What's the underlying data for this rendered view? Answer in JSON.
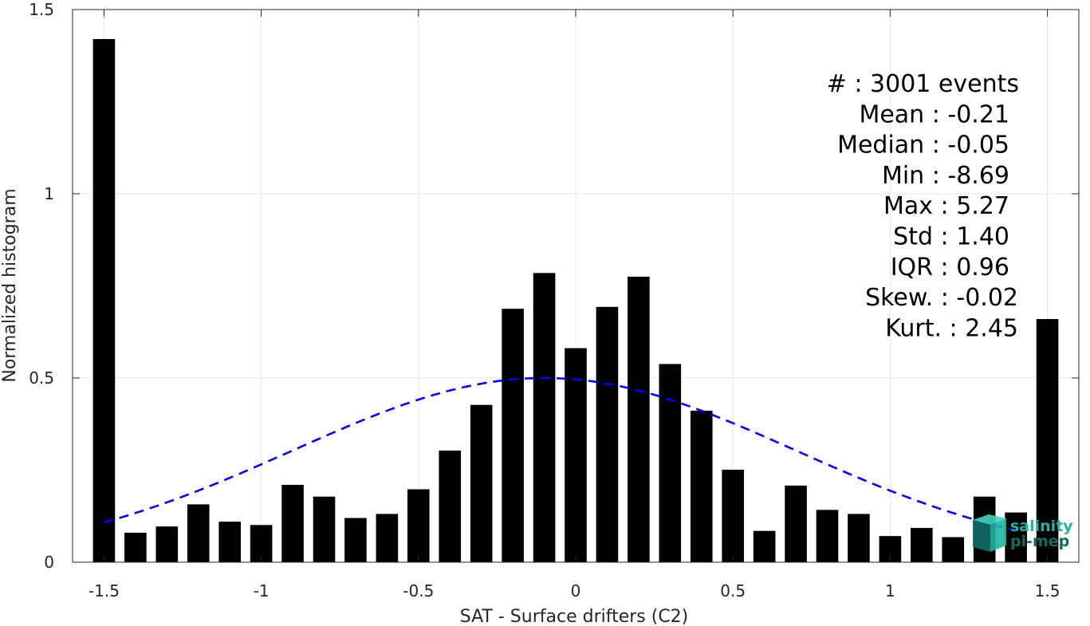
{
  "chart_data": {
    "type": "bar",
    "xlabel": "SAT - Surface drifters (C2)",
    "ylabel": "Normalized histogram",
    "xlim": [
      -1.6,
      1.6
    ],
    "ylim": [
      0,
      1.5
    ],
    "xticks": [
      -1.5,
      -1,
      -0.5,
      0,
      0.5,
      1,
      1.5
    ],
    "xtick_labels": [
      "-1.5",
      "-1",
      "-0.5",
      "0",
      "0.5",
      "1",
      "1.5"
    ],
    "yticks": [
      0,
      0.5,
      1,
      1.5
    ],
    "ytick_labels": [
      "0",
      "0.5",
      "1",
      "1.5"
    ],
    "grid": true,
    "bar_color": "#000000",
    "bar_width": 0.07,
    "x": [
      -1.5,
      -1.4,
      -1.3,
      -1.2,
      -1.1,
      -1.0,
      -0.9,
      -0.8,
      -0.7,
      -0.6,
      -0.5,
      -0.4,
      -0.3,
      -0.2,
      -0.1,
      0.0,
      0.1,
      0.2,
      0.3,
      0.4,
      0.5,
      0.6,
      0.7,
      0.8,
      0.9,
      1.0,
      1.1,
      1.2,
      1.3,
      1.4,
      1.5
    ],
    "values": [
      1.42,
      0.08,
      0.097,
      0.157,
      0.11,
      0.101,
      0.21,
      0.178,
      0.12,
      0.131,
      0.198,
      0.303,
      0.427,
      0.688,
      0.785,
      0.581,
      0.693,
      0.775,
      0.538,
      0.411,
      0.251,
      0.085,
      0.208,
      0.142,
      0.131,
      0.071,
      0.093,
      0.068,
      0.178,
      0.135,
      0.66
    ],
    "fit_curve": {
      "type": "gaussian",
      "style": "dashed",
      "color": "#0000ff",
      "mean": -0.1,
      "std": 0.8,
      "peak": 0.5,
      "x_range": [
        -1.5,
        1.4
      ]
    },
    "annotations": [
      {
        "label": "#  : ",
        "value": "3001 events"
      },
      {
        "label": "Mean : ",
        "value": "-0.21"
      },
      {
        "label": "Median : ",
        "value": "-0.05"
      },
      {
        "label": "Min : ",
        "value": "-8.69"
      },
      {
        "label": "Max : ",
        "value": "5.27"
      },
      {
        "label": "Std : ",
        "value": "1.40"
      },
      {
        "label": "IQR : ",
        "value": "0.96"
      },
      {
        "label": "Skew. : ",
        "value": "-0.02"
      },
      {
        "label": "Kurt. : ",
        "value": "2.45"
      }
    ]
  },
  "logo": {
    "line1": "salinity",
    "line2": "pi-mep",
    "color": "#1fb5a0",
    "dark_color": "#0f6e64"
  }
}
